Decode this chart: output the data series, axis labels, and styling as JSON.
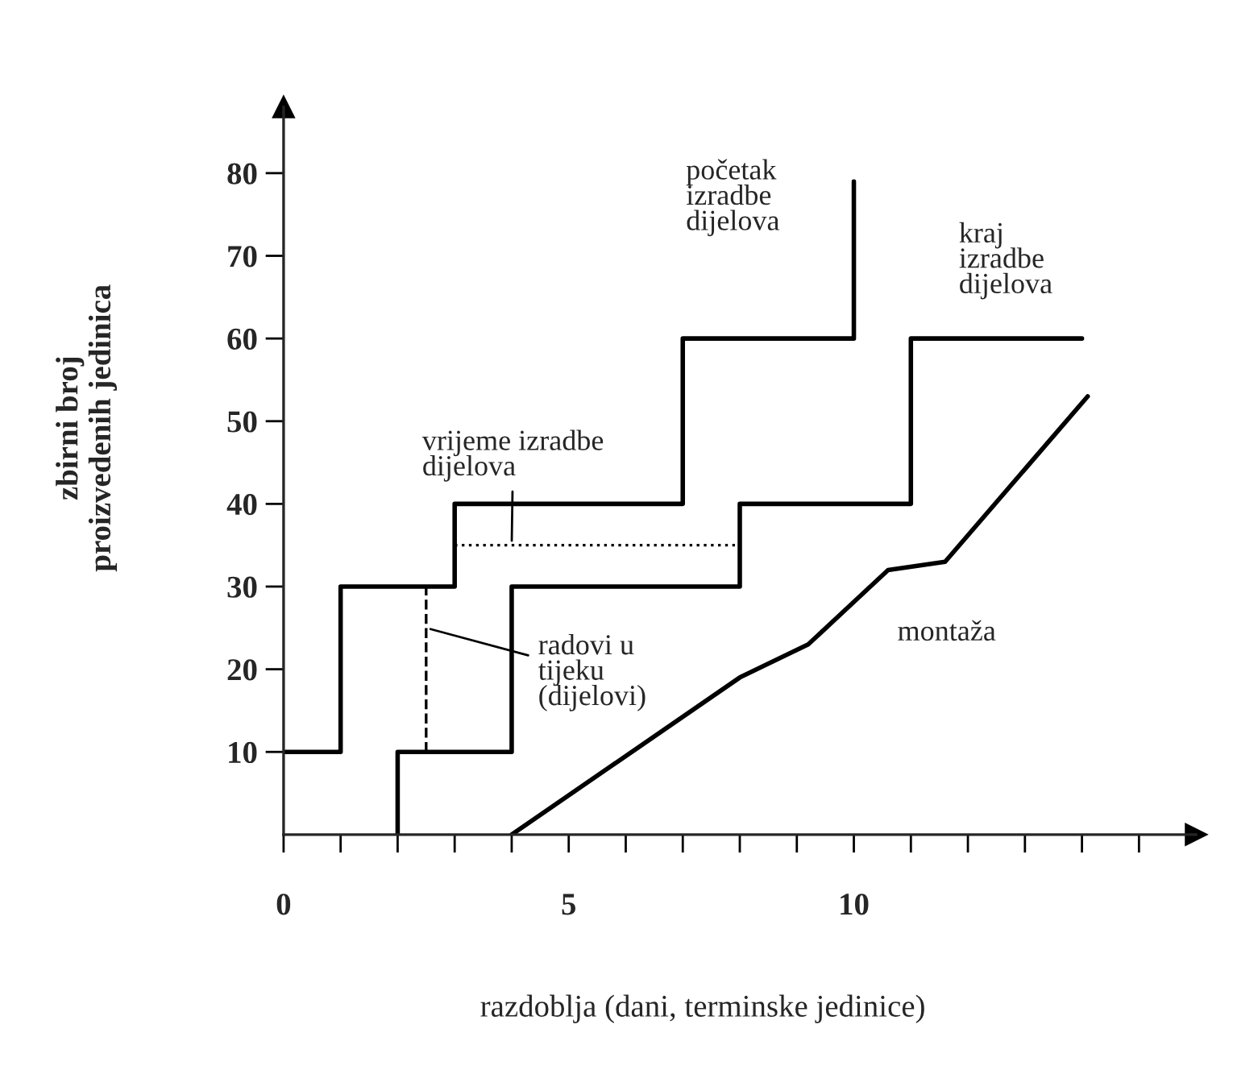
{
  "chart_data": {
    "type": "step",
    "xlabel": "razdoblja (dani, terminske jedinice)",
    "ylabel": "zbirni broj\nproizvedenih jedinica",
    "xlim": [
      0,
      16
    ],
    "ylim": [
      0,
      88
    ],
    "xticks": [
      0,
      {
        "value": 1,
        "label": null
      },
      {
        "value": 2,
        "label": null
      },
      {
        "value": 3,
        "label": null
      },
      {
        "value": 4,
        "label": null
      },
      5,
      {
        "value": 6,
        "label": null
      },
      {
        "value": 7,
        "label": null
      },
      {
        "value": 8,
        "label": null
      },
      {
        "value": 9,
        "label": null
      },
      10,
      {
        "value": 11,
        "label": null
      },
      {
        "value": 12,
        "label": null
      },
      {
        "value": 13,
        "label": null
      },
      {
        "value": 14,
        "label": null
      },
      {
        "value": 15,
        "label": null
      }
    ],
    "yticks": [
      10,
      20,
      30,
      40,
      50,
      60,
      70,
      80
    ],
    "grid": false,
    "legend": false,
    "marker": "none",
    "series": [
      {
        "name": "početak\nizradbe\ndijelova",
        "color": "#000000",
        "line_style": "solid",
        "x": [
          0,
          1,
          3,
          7,
          10,
          10
        ],
        "values": [
          10,
          30,
          40,
          60,
          60,
          79
        ]
      },
      {
        "name": "kraj\nizradbe\ndijelova",
        "color": "#000000",
        "line_style": "solid",
        "x": [
          2,
          2,
          4,
          8,
          11,
          14
        ],
        "values": [
          0,
          10,
          30,
          40,
          60,
          60
        ]
      },
      {
        "name": "montaža",
        "type": "line",
        "color": "#000000",
        "line_style": "solid",
        "x": [
          4,
          8,
          9.2,
          10.6,
          11.6,
          14.1
        ],
        "values": [
          0,
          19,
          23,
          32,
          33,
          53
        ]
      },
      {
        "type": "line",
        "color": "#000000",
        "line_style": "dotted",
        "x": [
          3,
          8
        ],
        "values": [
          35,
          35
        ]
      },
      {
        "type": "line",
        "color": "#000000",
        "line_style": "dashed",
        "x": [
          2.5,
          2.5
        ],
        "values": [
          10,
          30
        ]
      }
    ],
    "annotations": [
      {
        "text": "vrijeme izradbe\ndijelova",
        "x": 4,
        "y": 35
      },
      {
        "text": "radovi u\ntijeku\n(dijelovi)",
        "x": 2.5,
        "y": 25
      }
    ]
  }
}
